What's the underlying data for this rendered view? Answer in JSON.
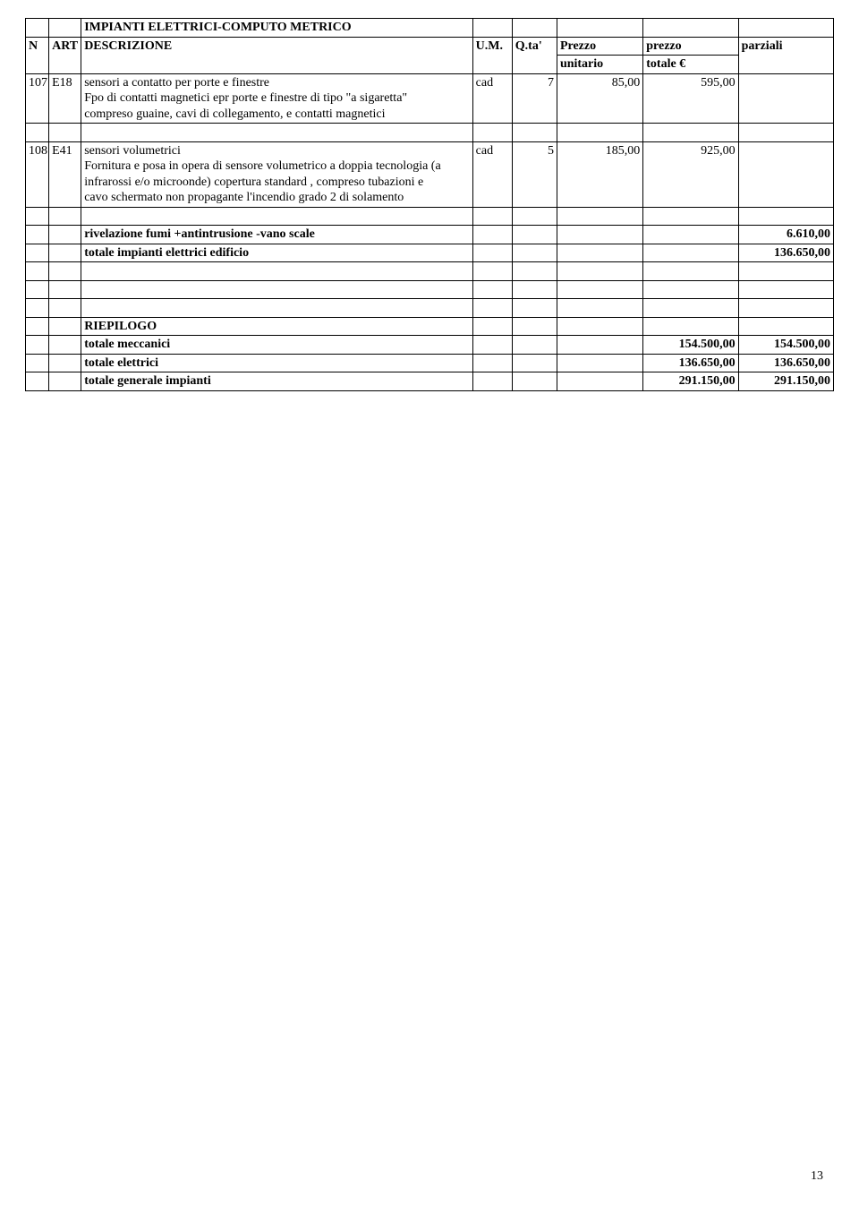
{
  "header": {
    "title": "IMPIANTI ELETTRICI-COMPUTO METRICO",
    "col_n": "N",
    "col_art": "ART",
    "col_desc": "DESCRIZIONE",
    "col_um": "U.M.",
    "col_qta": "Q.ta'",
    "col_prezzo": "Prezzo",
    "col_prezzo2": "unitario",
    "col_prezzotot": "prezzo",
    "col_prezzotot2": "totale €",
    "col_parziali": "parziali"
  },
  "rows": [
    {
      "n": "107",
      "art": "E18",
      "desc_lines": [
        "sensori a contatto per porte e finestre",
        "Fpo di contatti magnetici epr porte e finestre di tipo \"a sigaretta\"",
        "compreso guaine, cavi di collegamento, e contatti magnetici"
      ],
      "um": "cad",
      "qta": "7",
      "prezzo_unit": "85,00",
      "prezzo_tot": "595,00",
      "parziali": ""
    },
    {
      "n": "108",
      "art": "E41",
      "desc_lines": [
        "",
        "sensori volumetrici",
        "Fornitura e posa in opera di sensore volumetrico a doppia tecnologia (a",
        "infrarossi e/o microonde) copertura standard , compreso tubazioni e",
        "cavo  schermato non propagante l'incendio grado 2 di solamento"
      ],
      "um": "cad",
      "qta": "5",
      "prezzo_unit": "185,00",
      "prezzo_tot": "925,00",
      "parziali": ""
    }
  ],
  "subtotals": [
    {
      "label": "rivelazione fumi +antintrusione -vano scale",
      "value_parziali": "6.610,00"
    },
    {
      "label": " totale impianti elettrici edificio",
      "value_parziali": "136.650,00"
    }
  ],
  "riepilogo_header": "RIEPILOGO",
  "riepilogo": [
    {
      "label": "totale meccanici",
      "prezzo_tot": "154.500,00",
      "parziali": "154.500,00"
    },
    {
      "label": "totale elettrici",
      "prezzo_tot": "136.650,00",
      "parziali": "136.650,00"
    },
    {
      "label": "totale generale impianti",
      "prezzo_tot": "291.150,00",
      "parziali": "291.150,00"
    }
  ],
  "page_number": "13"
}
